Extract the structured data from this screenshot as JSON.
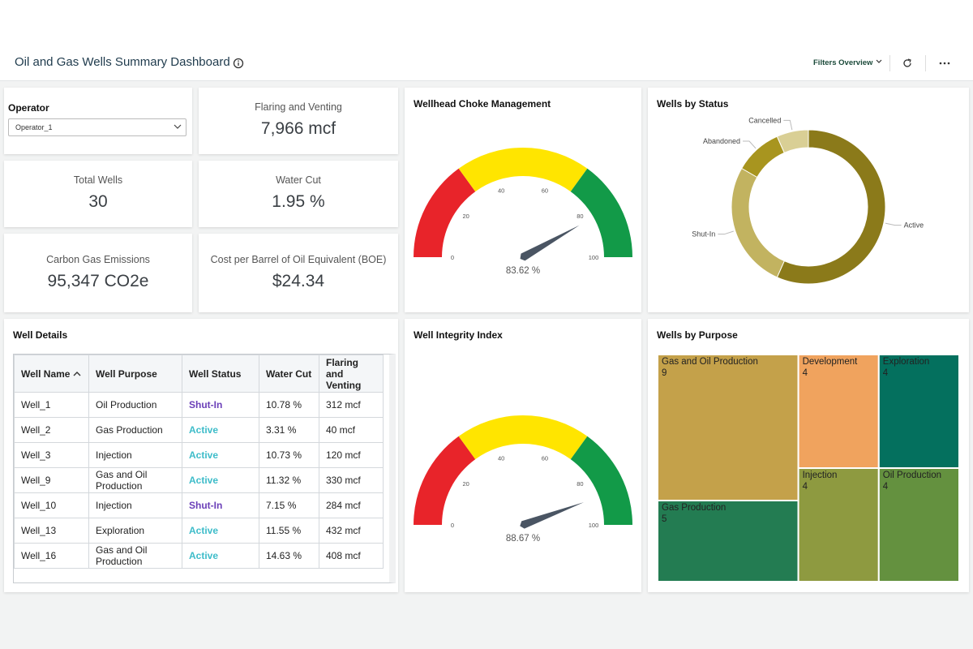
{
  "header": {
    "title": "Oil and Gas Wells Summary Dashboard",
    "filters": "Filters Overview"
  },
  "operator": {
    "label": "Operator",
    "selected": "Operator_1"
  },
  "kpis": [
    {
      "label": "Flaring and Venting",
      "value": "7,966 mcf"
    },
    {
      "label": "Total Wells",
      "value": "30"
    },
    {
      "label": "Water Cut",
      "value": "1.95 %"
    },
    {
      "label": "Carbon Gas Emissions",
      "value": "95,347 CO2e"
    },
    {
      "label": "Cost per Barrel of Oil Equivalent (BOE)",
      "value": "$24.34"
    }
  ],
  "table": {
    "title": "Well Details",
    "columns": [
      "Well Name",
      "Well Purpose",
      "Well Status",
      "Water Cut",
      "Flaring and Venting"
    ],
    "rows": [
      [
        "Well_1",
        "Oil Production",
        "Shut-In",
        "10.78 %",
        "312 mcf"
      ],
      [
        "Well_2",
        "Gas Production",
        "Active",
        "3.31 %",
        "40 mcf"
      ],
      [
        "Well_3",
        "Injection",
        "Active",
        "10.73 %",
        "120 mcf"
      ],
      [
        "Well_9",
        "Gas and Oil Production",
        "Active",
        "11.32 %",
        "330 mcf"
      ],
      [
        "Well_10",
        "Injection",
        "Shut-In",
        "7.15 %",
        "284 mcf"
      ],
      [
        "Well_13",
        "Exploration",
        "Active",
        "11.55 %",
        "432 mcf"
      ],
      [
        "Well_16",
        "Gas and Oil Production",
        "Active",
        "14.63 %",
        "408 mcf"
      ]
    ],
    "status_colors": {
      "Active": "#3dbcc9",
      "Shut-In": "#6b3fb8"
    }
  },
  "chart_data": [
    {
      "type": "gauge",
      "title": "Wellhead Choke Management",
      "values": [
        83.62
      ],
      "value_labels": [
        "83.62 %"
      ],
      "ylim": [
        0,
        100
      ],
      "yticks": [
        0,
        20,
        40,
        60,
        80,
        100
      ],
      "bands": [
        {
          "from": 0,
          "to": 30,
          "color": "#e8242a"
        },
        {
          "from": 30,
          "to": 70,
          "color": "#ffe500"
        },
        {
          "from": 70,
          "to": 100,
          "color": "#129a48"
        }
      ],
      "needle_color": "#4a5563"
    },
    {
      "type": "gauge",
      "title": "Well Integrity Index",
      "values": [
        88.67
      ],
      "value_labels": [
        "88.67 %"
      ],
      "ylim": [
        0,
        100
      ],
      "yticks": [
        0,
        20,
        40,
        60,
        80,
        100
      ],
      "bands": [
        {
          "from": 0,
          "to": 30,
          "color": "#e8242a"
        },
        {
          "from": 30,
          "to": 70,
          "color": "#ffe500"
        },
        {
          "from": 70,
          "to": 100,
          "color": "#129a48"
        }
      ],
      "needle_color": "#4a5563"
    },
    {
      "type": "donut",
      "title": "Wells by Status",
      "categories": [
        "Active",
        "Shut-In",
        "Abandoned",
        "Cancelled"
      ],
      "values": [
        17,
        8,
        3,
        2
      ],
      "colors": [
        "#8b7a1a",
        "#c2b360",
        "#a8951f",
        "#d9cf95"
      ]
    },
    {
      "type": "treemap",
      "title": "Wells by Purpose",
      "categories": [
        "Gas and Oil Production",
        "Gas Production",
        "Development",
        "Exploration",
        "Injection",
        "Oil Production"
      ],
      "values": [
        9,
        5,
        4,
        4,
        4,
        4
      ],
      "colors": [
        "#c4a14a",
        "#237c52",
        "#f0a35e",
        "#04705e",
        "#8e9a40",
        "#64913f"
      ]
    }
  ]
}
